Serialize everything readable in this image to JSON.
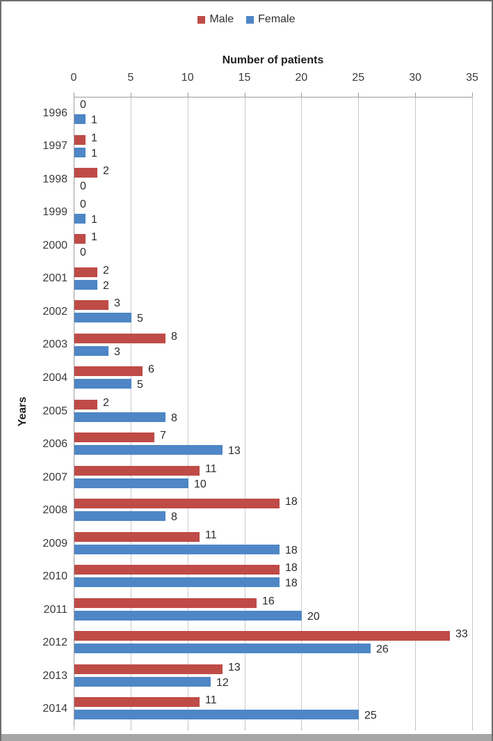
{
  "chart_data": {
    "type": "bar",
    "orientation": "horizontal",
    "title": "",
    "xlabel": "Number of patients",
    "ylabel": "Years",
    "xlim": [
      0,
      35
    ],
    "xticks": [
      0,
      5,
      10,
      15,
      20,
      25,
      30,
      35
    ],
    "grid": true,
    "legend_position": "top-center",
    "data_labels": true,
    "categories": [
      "1996",
      "1997",
      "1998",
      "1999",
      "2000",
      "2001",
      "2002",
      "2003",
      "2004",
      "2005",
      "2006",
      "2007",
      "2008",
      "2009",
      "2010",
      "2011",
      "2012",
      "2013",
      "2014"
    ],
    "series": [
      {
        "name": "Male",
        "color": "#bf4b47",
        "values": [
          0,
          1,
          2,
          0,
          1,
          2,
          3,
          8,
          6,
          2,
          7,
          11,
          18,
          11,
          18,
          16,
          33,
          13,
          11
        ]
      },
      {
        "name": "Female",
        "color": "#4e86c6",
        "values": [
          1,
          1,
          0,
          1,
          0,
          2,
          5,
          3,
          5,
          8,
          13,
          10,
          8,
          18,
          18,
          20,
          26,
          12,
          25
        ]
      }
    ],
    "colors": {
      "gridline": "#c9c9c9",
      "axis_line": "#9b9b9b",
      "text": "#2b2b2b",
      "frame_border": "#6f6f6f",
      "frame_bottom": "#a6a6a6"
    }
  }
}
